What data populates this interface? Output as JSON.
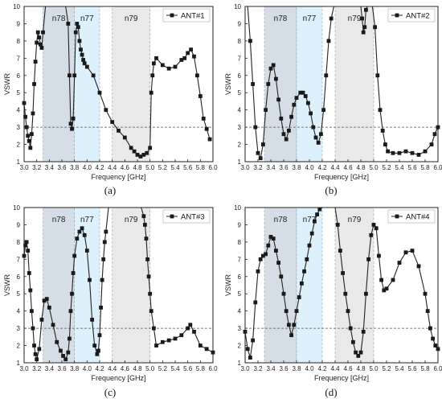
{
  "chart_data": [
    {
      "type": "line",
      "panel_label": "(a)",
      "legend": "ANT#1",
      "xlabel": "Frequency [GHz]",
      "ylabel": "VSWR",
      "xlim": [
        3.0,
        6.0
      ],
      "ylim": [
        1,
        10
      ],
      "xticks": [
        "3.0",
        "3.2",
        "3.4",
        "3.6",
        "3.8",
        "4.0",
        "4.2",
        "4.4",
        "4.6",
        "4.8",
        "5.0",
        "5.2",
        "5.4",
        "5.6",
        "5.8",
        "6.0"
      ],
      "yticks": [
        "1",
        "2",
        "3",
        "4",
        "5",
        "6",
        "7",
        "8",
        "9",
        "10"
      ],
      "threshold": 3,
      "bands": [
        {
          "label": "n78",
          "range": [
            3.3,
            3.8
          ],
          "color": "#d5dee6"
        },
        {
          "label": "n77",
          "range": [
            3.8,
            4.2
          ],
          "color": "#dcf1fb"
        },
        {
          "label": "n79",
          "range": [
            4.4,
            5.0
          ],
          "color": "#e9e9e9"
        }
      ],
      "x": [
        3.0,
        3.02,
        3.04,
        3.06,
        3.08,
        3.1,
        3.12,
        3.14,
        3.16,
        3.18,
        3.2,
        3.22,
        3.24,
        3.26,
        3.28,
        3.3,
        3.34,
        3.4,
        3.5,
        3.6,
        3.66,
        3.7,
        3.72,
        3.74,
        3.76,
        3.78,
        3.8,
        3.82,
        3.84,
        3.86,
        3.88,
        3.9,
        3.92,
        3.94,
        3.96,
        4.0,
        4.1,
        4.2,
        4.3,
        4.4,
        4.5,
        4.6,
        4.7,
        4.75,
        4.8,
        4.85,
        4.9,
        4.95,
        5.0,
        5.02,
        5.04,
        5.06,
        5.1,
        5.2,
        5.3,
        5.4,
        5.5,
        5.55,
        5.6,
        5.65,
        5.7,
        5.75,
        5.8,
        5.85,
        5.9,
        5.95
      ],
      "y": [
        4.4,
        3.6,
        3.0,
        2.5,
        2.2,
        1.8,
        2.6,
        3.8,
        5.5,
        6.8,
        7.9,
        8.5,
        8.2,
        7.8,
        7.6,
        8.5,
        10.0,
        10.0,
        10.0,
        10.0,
        10.0,
        9.0,
        6.0,
        3.2,
        2.9,
        3.5,
        6.0,
        8.5,
        9.0,
        8.8,
        8.0,
        7.5,
        7.2,
        6.9,
        6.7,
        6.5,
        6.0,
        5.0,
        4.0,
        3.3,
        2.8,
        2.4,
        1.8,
        1.6,
        1.4,
        1.3,
        1.4,
        1.5,
        1.8,
        5.0,
        6.0,
        6.7,
        7.0,
        6.6,
        6.4,
        6.5,
        6.9,
        7.0,
        7.3,
        7.5,
        7.1,
        6.0,
        4.8,
        3.5,
        2.9,
        2.3
      ]
    },
    {
      "type": "line",
      "panel_label": "(b)",
      "legend": "ANT#2",
      "xlabel": "Frequency [GHz]",
      "ylabel": "VSWR",
      "xlim": [
        3.0,
        6.0
      ],
      "ylim": [
        1,
        10
      ],
      "xticks": [
        "3.0",
        "3.2",
        "3.4",
        "3.6",
        "3.8",
        "4.0",
        "4.2",
        "4.4",
        "4.6",
        "4.8",
        "5.0",
        "5.2",
        "5.4",
        "5.6",
        "5.8",
        "6.0"
      ],
      "yticks": [
        "1",
        "2",
        "3",
        "4",
        "5",
        "6",
        "7",
        "8",
        "9",
        "10"
      ],
      "threshold": 3,
      "bands": [
        {
          "label": "n78",
          "range": [
            3.3,
            3.8
          ],
          "color": "#d5dee6"
        },
        {
          "label": "n77",
          "range": [
            3.8,
            4.2
          ],
          "color": "#dcf1fb"
        },
        {
          "label": "n79",
          "range": [
            4.4,
            5.0
          ],
          "color": "#e9e9e9"
        }
      ],
      "x": [
        3.0,
        3.04,
        3.08,
        3.12,
        3.16,
        3.2,
        3.24,
        3.28,
        3.32,
        3.36,
        3.4,
        3.44,
        3.48,
        3.52,
        3.56,
        3.6,
        3.64,
        3.68,
        3.72,
        3.76,
        3.8,
        3.86,
        3.9,
        3.94,
        3.98,
        4.02,
        4.06,
        4.1,
        4.14,
        4.18,
        4.22,
        4.26,
        4.3,
        4.34,
        4.38,
        4.42,
        4.46,
        4.5,
        4.6,
        4.7,
        4.8,
        4.82,
        4.84,
        4.86,
        4.88,
        4.9,
        4.94,
        4.98,
        5.02,
        5.06,
        5.1,
        5.14,
        5.18,
        5.22,
        5.3,
        5.4,
        5.5,
        5.6,
        5.7,
        5.8,
        5.9,
        5.95,
        6.0
      ],
      "y": [
        10.0,
        10.0,
        8.0,
        5.5,
        3.0,
        1.5,
        1.2,
        2.0,
        4.0,
        5.5,
        6.4,
        6.6,
        5.8,
        4.6,
        3.5,
        2.6,
        2.3,
        2.8,
        3.6,
        4.3,
        4.7,
        5.0,
        5.0,
        4.8,
        4.4,
        3.8,
        3.0,
        2.4,
        2.1,
        2.6,
        4.0,
        6.0,
        8.0,
        9.3,
        10.0,
        10.0,
        10.0,
        10.0,
        10.0,
        10.0,
        10.0,
        9.3,
        8.5,
        8.8,
        9.8,
        10.0,
        10.0,
        10.0,
        8.8,
        6.0,
        4.0,
        2.8,
        2.0,
        1.6,
        1.5,
        1.5,
        1.6,
        1.5,
        1.4,
        1.6,
        2.0,
        2.6,
        3.0
      ]
    },
    {
      "type": "line",
      "panel_label": "(c)",
      "legend": "ANT#3",
      "xlabel": "Frequency [GHz]",
      "ylabel": "VSWR",
      "xlim": [
        3.0,
        6.0
      ],
      "ylim": [
        1,
        10
      ],
      "xticks": [
        "3.0",
        "3.2",
        "3.4",
        "3.6",
        "3.8",
        "4.0",
        "4.2",
        "4.4",
        "4.6",
        "4.8",
        "5.0",
        "5.2",
        "5.4",
        "5.6",
        "5.8",
        "6.0"
      ],
      "yticks": [
        "1",
        "2",
        "3",
        "4",
        "5",
        "6",
        "7",
        "8",
        "9",
        "10"
      ],
      "threshold": 3,
      "bands": [
        {
          "label": "n78",
          "range": [
            3.3,
            3.8
          ],
          "color": "#d5dee6"
        },
        {
          "label": "n77",
          "range": [
            3.8,
            4.2
          ],
          "color": "#dcf1fb"
        },
        {
          "label": "n79",
          "range": [
            4.4,
            5.0
          ],
          "color": "#e9e9e9"
        }
      ],
      "x": [
        3.0,
        3.02,
        3.04,
        3.06,
        3.08,
        3.1,
        3.12,
        3.14,
        3.16,
        3.18,
        3.2,
        3.24,
        3.28,
        3.32,
        3.36,
        3.4,
        3.46,
        3.52,
        3.58,
        3.62,
        3.66,
        3.7,
        3.72,
        3.74,
        3.76,
        3.78,
        3.8,
        3.84,
        3.88,
        3.92,
        3.96,
        4.0,
        4.04,
        4.08,
        4.12,
        4.16,
        4.18,
        4.2,
        4.22,
        4.24,
        4.26,
        4.28,
        4.3,
        4.34,
        4.38,
        4.42,
        4.5,
        4.6,
        4.7,
        4.8,
        4.86,
        4.9,
        4.92,
        4.94,
        4.96,
        4.98,
        5.0,
        5.02,
        5.06,
        5.1,
        5.2,
        5.3,
        5.4,
        5.5,
        5.6,
        5.64,
        5.7,
        5.8,
        5.9,
        6.0
      ],
      "y": [
        7.2,
        7.8,
        8.0,
        7.5,
        6.2,
        5.2,
        4.0,
        3.0,
        2.0,
        1.5,
        1.2,
        1.8,
        3.5,
        4.6,
        4.7,
        4.2,
        3.2,
        2.2,
        1.7,
        1.4,
        1.2,
        1.6,
        2.4,
        4.0,
        5.0,
        6.2,
        7.2,
        8.2,
        8.6,
        8.8,
        8.4,
        7.5,
        5.8,
        3.5,
        2.0,
        1.5,
        1.7,
        2.6,
        4.2,
        5.8,
        7.0,
        8.0,
        8.6,
        10.0,
        10.0,
        10.0,
        10.0,
        10.0,
        10.0,
        10.0,
        10.0,
        9.5,
        9.0,
        8.2,
        7.0,
        6.0,
        5.0,
        4.0,
        3.0,
        2.0,
        2.2,
        2.3,
        2.4,
        2.6,
        3.0,
        3.2,
        2.8,
        2.0,
        1.8,
        1.6
      ]
    },
    {
      "type": "line",
      "panel_label": "(d)",
      "legend": "ANT#4",
      "xlabel": "Frequency [GHz]",
      "ylabel": "VSWR",
      "xlim": [
        3.0,
        6.0
      ],
      "ylim": [
        1,
        10
      ],
      "xticks": [
        "3.0",
        "3.2",
        "3.4",
        "3.6",
        "3.8",
        "4.0",
        "4.2",
        "4.4",
        "4.6",
        "4.8",
        "5.0",
        "5.2",
        "5.4",
        "5.6",
        "5.8",
        "6.0"
      ],
      "yticks": [
        "1",
        "2",
        "3",
        "4",
        "5",
        "6",
        "7",
        "8",
        "9",
        "10"
      ],
      "threshold": 3,
      "bands": [
        {
          "label": "n78",
          "range": [
            3.3,
            3.8
          ],
          "color": "#d5dee6"
        },
        {
          "label": "n77",
          "range": [
            3.8,
            4.2
          ],
          "color": "#dcf1fb"
        },
        {
          "label": "n79",
          "range": [
            4.4,
            5.0
          ],
          "color": "#e9e9e9"
        }
      ],
      "x": [
        3.0,
        3.04,
        3.08,
        3.12,
        3.16,
        3.2,
        3.24,
        3.28,
        3.32,
        3.36,
        3.4,
        3.44,
        3.48,
        3.52,
        3.56,
        3.6,
        3.64,
        3.68,
        3.72,
        3.76,
        3.8,
        3.84,
        3.88,
        3.92,
        3.96,
        4.0,
        4.04,
        4.08,
        4.12,
        4.16,
        4.2,
        4.4,
        4.44,
        4.48,
        4.52,
        4.56,
        4.6,
        4.64,
        4.68,
        4.72,
        4.76,
        4.8,
        4.84,
        4.88,
        4.92,
        4.96,
        5.0,
        5.04,
        5.08,
        5.12,
        5.16,
        5.2,
        5.3,
        5.4,
        5.5,
        5.6,
        5.7,
        5.8,
        5.84,
        5.88,
        5.92,
        5.96,
        6.0
      ],
      "y": [
        2.8,
        1.8,
        1.3,
        2.3,
        4.5,
        6.3,
        7.0,
        7.2,
        7.3,
        7.8,
        8.3,
        8.2,
        7.5,
        6.8,
        6.0,
        5.0,
        4.0,
        3.2,
        2.6,
        3.2,
        4.0,
        4.8,
        5.6,
        6.3,
        7.0,
        7.8,
        8.5,
        9.2,
        9.6,
        9.9,
        10.0,
        10.0,
        9.0,
        7.5,
        6.2,
        5.0,
        4.0,
        3.0,
        2.2,
        1.6,
        1.4,
        1.6,
        2.8,
        5.0,
        7.0,
        8.4,
        9.0,
        8.8,
        7.2,
        5.8,
        5.2,
        5.3,
        5.8,
        6.8,
        7.4,
        7.5,
        6.6,
        5.0,
        4.0,
        3.0,
        2.4,
        2.0,
        1.8
      ]
    }
  ]
}
